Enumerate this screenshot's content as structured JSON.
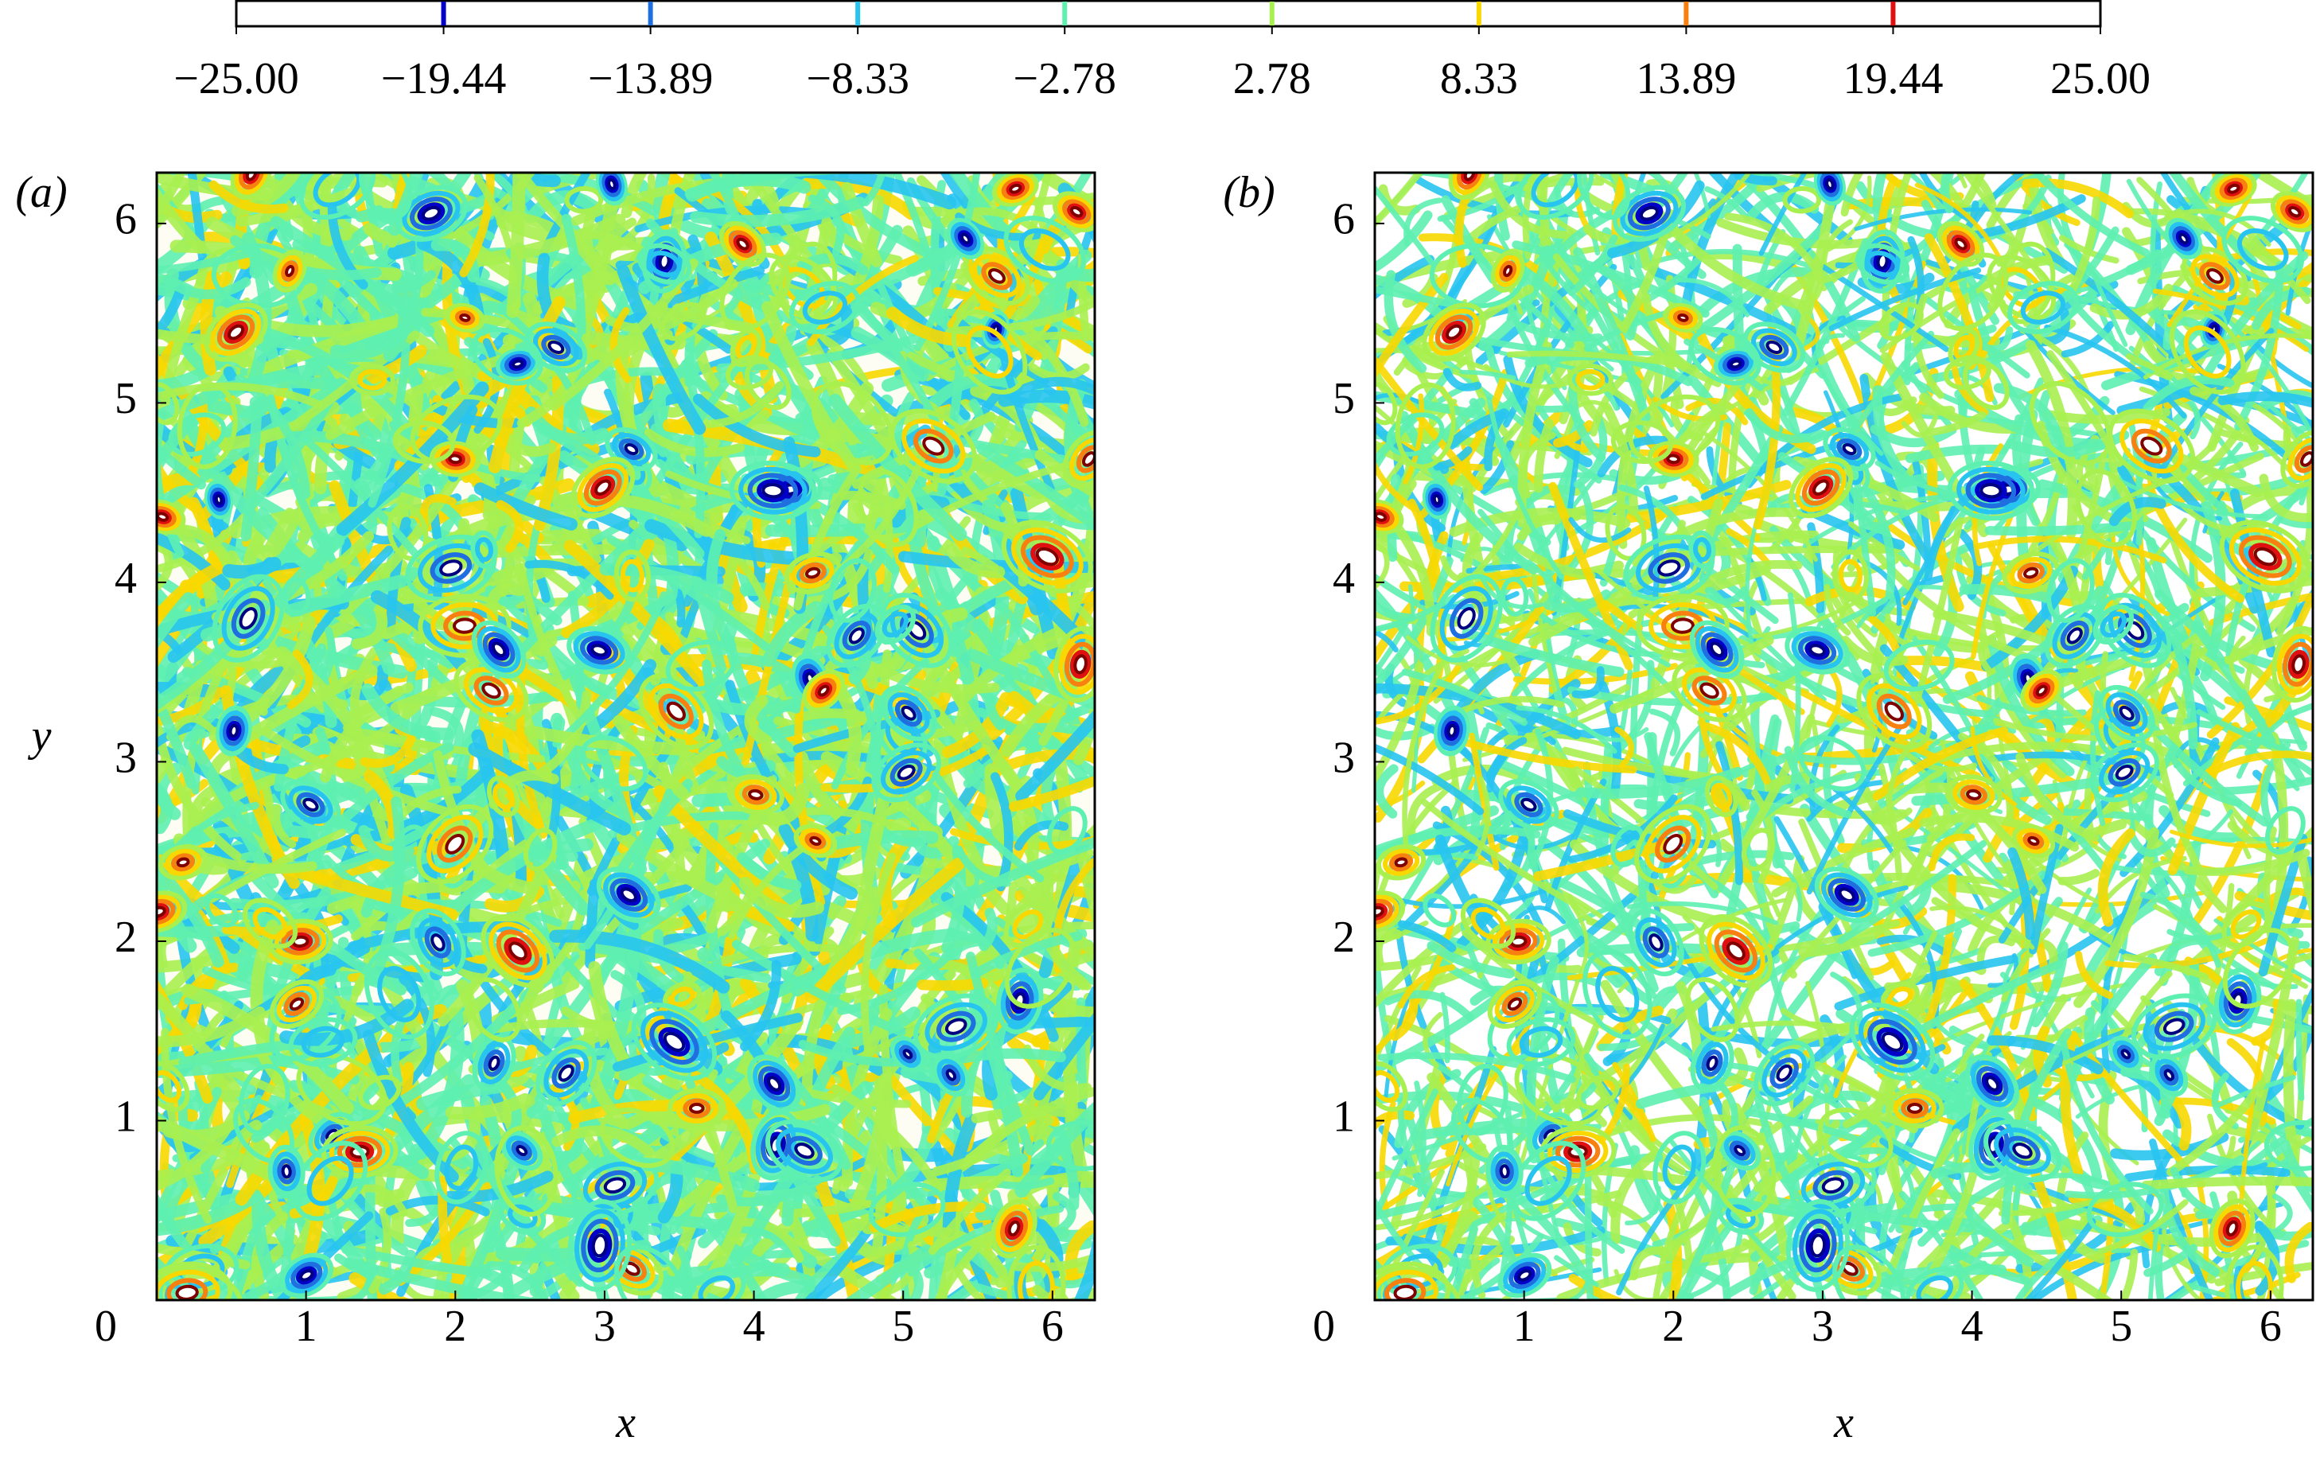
{
  "colorbar": {
    "lim": [
      -25,
      25
    ],
    "ticks": [
      {
        "value": -25,
        "label": "−25.00"
      },
      {
        "value": -19.44,
        "label": "−19.44"
      },
      {
        "value": -13.89,
        "label": "−13.89"
      },
      {
        "value": -8.33,
        "label": "−8.33"
      },
      {
        "value": -2.78,
        "label": "−2.78"
      },
      2.78,
      8.33,
      13.89,
      19.44,
      {
        "value": 25,
        "label": "25.00"
      }
    ],
    "colors": [
      "#0000c8",
      "#1f6fe0",
      "#27c4f0",
      "#5ef0b0",
      "#a8f050",
      "#f8d800",
      "#f88010",
      "#e01010"
    ]
  },
  "chart_data": [
    {
      "type": "contour",
      "panel_label": "(a)",
      "xlabel": "x",
      "ylabel": "y",
      "xlim": [
        0,
        6.2832
      ],
      "ylim": [
        0,
        6.2832
      ],
      "xticks": [
        0,
        1,
        2,
        3,
        4,
        5,
        6
      ],
      "yticks": [
        1,
        2,
        3,
        4,
        5,
        6
      ]
    },
    {
      "type": "contour",
      "panel_label": "(b)",
      "xlabel": "x",
      "xlim": [
        0,
        6.2832
      ],
      "ylim": [
        0,
        6.2832
      ],
      "xticks": [
        0,
        1,
        2,
        3,
        4,
        5,
        6
      ],
      "yticks": [
        1,
        2,
        3,
        4,
        5,
        6
      ]
    }
  ]
}
